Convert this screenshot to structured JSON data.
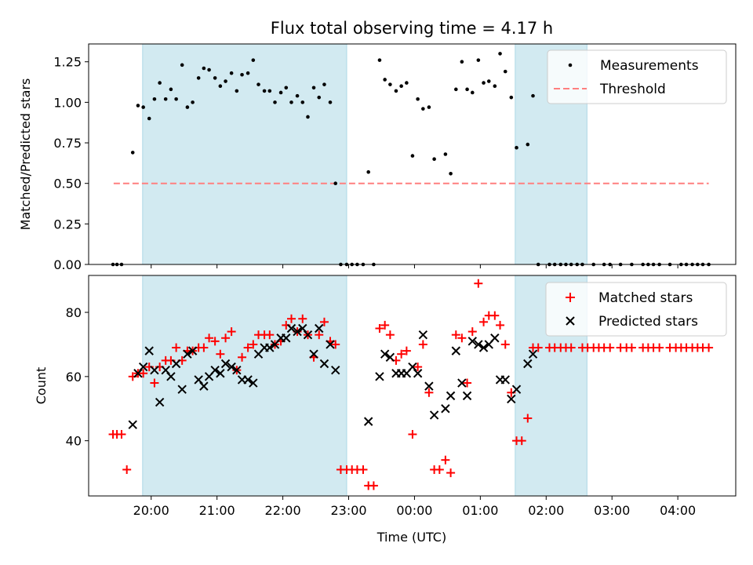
{
  "chart_data": {
    "type": "scatter",
    "title": "Flux total observing time = 4.17 h",
    "xlabel": "Time (UTC)",
    "x_unit": "hours UTC (values past 24 are after midnight)",
    "xlim": [
      19.05,
      28.88
    ],
    "xticks": [
      {
        "v": 20,
        "label": "20:00"
      },
      {
        "v": 21,
        "label": "21:00"
      },
      {
        "v": 22,
        "label": "22:00"
      },
      {
        "v": 23,
        "label": "23:00"
      },
      {
        "v": 24,
        "label": "00:00"
      },
      {
        "v": 25,
        "label": "01:00"
      },
      {
        "v": 26,
        "label": "02:00"
      },
      {
        "v": 27,
        "label": "03:00"
      },
      {
        "v": 28,
        "label": "04:00"
      }
    ],
    "shaded_intervals": [
      [
        19.87,
        22.97
      ],
      [
        25.53,
        26.62
      ]
    ],
    "top": {
      "ylabel": "Matched/Predicted stars",
      "ylim": [
        0,
        1.36
      ],
      "yticks": [
        "0.00",
        "0.25",
        "0.50",
        "0.75",
        "1.00",
        "1.25"
      ],
      "legend": {
        "position": "top-right",
        "entries": [
          "Measurements",
          "Threshold"
        ]
      },
      "threshold": {
        "name": "Threshold",
        "value": 0.5,
        "x_range": [
          19.43,
          28.47
        ],
        "color": "#ff7f7f"
      },
      "measurements": [
        [
          19.42,
          0
        ],
        [
          19.48,
          0
        ],
        [
          19.55,
          0
        ],
        [
          19.72,
          0.69
        ],
        [
          19.8,
          0.98
        ],
        [
          19.88,
          0.97
        ],
        [
          19.97,
          0.9
        ],
        [
          20.05,
          1.02
        ],
        [
          20.13,
          1.12
        ],
        [
          20.22,
          1.02
        ],
        [
          20.3,
          1.08
        ],
        [
          20.38,
          1.02
        ],
        [
          20.47,
          1.23
        ],
        [
          20.55,
          0.97
        ],
        [
          20.63,
          1.0
        ],
        [
          20.72,
          1.15
        ],
        [
          20.8,
          1.21
        ],
        [
          20.88,
          1.2
        ],
        [
          20.97,
          1.15
        ],
        [
          21.05,
          1.1
        ],
        [
          21.13,
          1.13
        ],
        [
          21.22,
          1.18
        ],
        [
          21.3,
          1.07
        ],
        [
          21.38,
          1.17
        ],
        [
          21.47,
          1.18
        ],
        [
          21.55,
          1.26
        ],
        [
          21.63,
          1.11
        ],
        [
          21.72,
          1.07
        ],
        [
          21.8,
          1.07
        ],
        [
          21.88,
          1.0
        ],
        [
          21.97,
          1.06
        ],
        [
          22.05,
          1.09
        ],
        [
          22.13,
          1.0
        ],
        [
          22.22,
          1.04
        ],
        [
          22.3,
          1.0
        ],
        [
          22.38,
          0.91
        ],
        [
          22.47,
          1.09
        ],
        [
          22.55,
          1.03
        ],
        [
          22.63,
          1.11
        ],
        [
          22.72,
          1.0
        ],
        [
          22.8,
          0.5
        ],
        [
          22.88,
          0
        ],
        [
          22.97,
          0
        ],
        [
          23.05,
          0
        ],
        [
          23.13,
          0
        ],
        [
          23.22,
          0
        ],
        [
          23.3,
          0.57
        ],
        [
          23.38,
          0
        ],
        [
          23.47,
          1.26
        ],
        [
          23.55,
          1.14
        ],
        [
          23.63,
          1.11
        ],
        [
          23.72,
          1.07
        ],
        [
          23.8,
          1.1
        ],
        [
          23.88,
          1.12
        ],
        [
          23.97,
          0.67
        ],
        [
          24.05,
          1.02
        ],
        [
          24.13,
          0.96
        ],
        [
          24.22,
          0.97
        ],
        [
          24.3,
          0.65
        ],
        [
          24.47,
          0.68
        ],
        [
          24.55,
          0.56
        ],
        [
          24.63,
          1.08
        ],
        [
          24.72,
          1.25
        ],
        [
          24.8,
          1.08
        ],
        [
          24.88,
          1.06
        ],
        [
          24.97,
          1.26
        ],
        [
          25.05,
          1.12
        ],
        [
          25.13,
          1.13
        ],
        [
          25.22,
          1.1
        ],
        [
          25.3,
          1.3
        ],
        [
          25.38,
          1.19
        ],
        [
          25.47,
          1.03
        ],
        [
          25.55,
          0.72
        ],
        [
          25.72,
          0.74
        ],
        [
          25.8,
          1.04
        ],
        [
          25.88,
          0
        ],
        [
          26.05,
          0
        ],
        [
          26.13,
          0
        ],
        [
          26.22,
          0
        ],
        [
          26.3,
          0
        ],
        [
          26.38,
          0
        ],
        [
          26.47,
          0
        ],
        [
          26.55,
          0
        ],
        [
          26.72,
          0
        ],
        [
          26.88,
          0
        ],
        [
          26.97,
          0
        ],
        [
          27.13,
          0
        ],
        [
          27.3,
          0
        ],
        [
          27.47,
          0
        ],
        [
          27.55,
          0
        ],
        [
          27.63,
          0
        ],
        [
          27.72,
          0
        ],
        [
          27.88,
          0
        ],
        [
          28.05,
          0
        ],
        [
          28.13,
          0
        ],
        [
          28.22,
          0
        ],
        [
          28.3,
          0
        ],
        [
          28.38,
          0
        ],
        [
          28.47,
          0
        ]
      ]
    },
    "bottom": {
      "ylabel": "Count",
      "ylim": [
        22.8,
        91.5
      ],
      "yticks": [
        "40",
        "60",
        "80"
      ],
      "legend": {
        "position": "top-right",
        "entries": [
          "Matched stars",
          "Predicted stars"
        ]
      },
      "matched": [
        [
          19.42,
          42
        ],
        [
          19.48,
          42
        ],
        [
          19.55,
          42
        ],
        [
          19.63,
          31
        ],
        [
          19.72,
          60
        ],
        [
          19.8,
          61
        ],
        [
          19.88,
          61
        ],
        [
          19.97,
          63
        ],
        [
          20.05,
          58
        ],
        [
          20.13,
          63
        ],
        [
          20.22,
          65
        ],
        [
          20.3,
          65
        ],
        [
          20.38,
          69
        ],
        [
          20.47,
          65
        ],
        [
          20.55,
          68
        ],
        [
          20.63,
          68
        ],
        [
          20.72,
          69
        ],
        [
          20.8,
          69
        ],
        [
          20.88,
          72
        ],
        [
          20.97,
          71
        ],
        [
          21.05,
          67
        ],
        [
          21.13,
          72
        ],
        [
          21.22,
          74
        ],
        [
          21.3,
          62
        ],
        [
          21.38,
          66
        ],
        [
          21.47,
          69
        ],
        [
          21.55,
          70
        ],
        [
          21.63,
          73
        ],
        [
          21.72,
          73
        ],
        [
          21.8,
          73
        ],
        [
          21.88,
          70
        ],
        [
          21.97,
          71
        ],
        [
          22.05,
          76
        ],
        [
          22.13,
          78
        ],
        [
          22.22,
          74
        ],
        [
          22.3,
          78
        ],
        [
          22.38,
          73
        ],
        [
          22.47,
          66
        ],
        [
          22.55,
          73
        ],
        [
          22.63,
          77
        ],
        [
          22.72,
          71
        ],
        [
          22.8,
          70
        ],
        [
          22.88,
          31
        ],
        [
          22.97,
          31
        ],
        [
          23.05,
          31
        ],
        [
          23.13,
          31
        ],
        [
          23.22,
          31
        ],
        [
          23.3,
          26
        ],
        [
          23.38,
          26
        ],
        [
          23.47,
          75
        ],
        [
          23.55,
          76
        ],
        [
          23.63,
          73
        ],
        [
          23.72,
          65
        ],
        [
          23.8,
          67
        ],
        [
          23.88,
          68
        ],
        [
          23.97,
          42
        ],
        [
          24.05,
          63
        ],
        [
          24.13,
          70
        ],
        [
          24.22,
          55
        ],
        [
          24.3,
          31
        ],
        [
          24.38,
          31
        ],
        [
          24.47,
          34
        ],
        [
          24.55,
          30
        ],
        [
          24.63,
          73
        ],
        [
          24.72,
          72
        ],
        [
          24.8,
          58
        ],
        [
          24.88,
          74
        ],
        [
          24.97,
          89
        ],
        [
          25.05,
          77
        ],
        [
          25.13,
          79
        ],
        [
          25.22,
          79
        ],
        [
          25.3,
          76
        ],
        [
          25.38,
          70
        ],
        [
          25.47,
          55
        ],
        [
          25.55,
          40
        ],
        [
          25.63,
          40
        ],
        [
          25.72,
          47
        ],
        [
          25.8,
          69
        ],
        [
          25.88,
          69
        ],
        [
          26.05,
          69
        ],
        [
          26.13,
          69
        ],
        [
          26.22,
          69
        ],
        [
          26.3,
          69
        ],
        [
          26.38,
          69
        ],
        [
          26.55,
          69
        ],
        [
          26.63,
          69
        ],
        [
          26.72,
          69
        ],
        [
          26.8,
          69
        ],
        [
          26.88,
          69
        ],
        [
          26.97,
          69
        ],
        [
          27.13,
          69
        ],
        [
          27.22,
          69
        ],
        [
          27.3,
          69
        ],
        [
          27.47,
          69
        ],
        [
          27.55,
          69
        ],
        [
          27.63,
          69
        ],
        [
          27.72,
          69
        ],
        [
          27.88,
          69
        ],
        [
          27.97,
          69
        ],
        [
          28.05,
          69
        ],
        [
          28.13,
          69
        ],
        [
          28.22,
          69
        ],
        [
          28.3,
          69
        ],
        [
          28.38,
          69
        ],
        [
          28.47,
          69
        ]
      ],
      "predicted": [
        [
          19.72,
          45
        ],
        [
          19.8,
          61
        ],
        [
          19.88,
          63
        ],
        [
          19.97,
          68
        ],
        [
          20.05,
          62
        ],
        [
          20.13,
          52
        ],
        [
          20.22,
          62
        ],
        [
          20.3,
          60
        ],
        [
          20.38,
          64
        ],
        [
          20.47,
          56
        ],
        [
          20.55,
          67
        ],
        [
          20.63,
          68
        ],
        [
          20.72,
          59
        ],
        [
          20.8,
          57
        ],
        [
          20.88,
          60
        ],
        [
          20.97,
          62
        ],
        [
          21.05,
          61
        ],
        [
          21.13,
          64
        ],
        [
          21.22,
          63
        ],
        [
          21.3,
          62
        ],
        [
          21.38,
          59
        ],
        [
          21.47,
          59
        ],
        [
          21.55,
          58
        ],
        [
          21.63,
          67
        ],
        [
          21.72,
          69
        ],
        [
          21.8,
          69
        ],
        [
          21.88,
          70
        ],
        [
          21.97,
          72
        ],
        [
          22.05,
          72
        ],
        [
          22.13,
          75
        ],
        [
          22.22,
          74
        ],
        [
          22.3,
          75
        ],
        [
          22.38,
          73
        ],
        [
          22.47,
          67
        ],
        [
          22.55,
          75
        ],
        [
          22.63,
          64
        ],
        [
          22.72,
          70
        ],
        [
          22.8,
          62
        ],
        [
          23.3,
          46
        ],
        [
          23.47,
          60
        ],
        [
          23.55,
          67
        ],
        [
          23.63,
          66
        ],
        [
          23.72,
          61
        ],
        [
          23.8,
          61
        ],
        [
          23.88,
          61
        ],
        [
          23.97,
          63
        ],
        [
          24.05,
          61
        ],
        [
          24.13,
          73
        ],
        [
          24.22,
          57
        ],
        [
          24.3,
          48
        ],
        [
          24.47,
          50
        ],
        [
          24.55,
          54
        ],
        [
          24.63,
          68
        ],
        [
          24.72,
          58
        ],
        [
          24.8,
          54
        ],
        [
          24.88,
          71
        ],
        [
          24.97,
          70
        ],
        [
          25.05,
          69
        ],
        [
          25.13,
          70
        ],
        [
          25.22,
          72
        ],
        [
          25.3,
          59
        ],
        [
          25.38,
          59
        ],
        [
          25.47,
          53
        ],
        [
          25.55,
          56
        ],
        [
          25.72,
          64
        ],
        [
          25.8,
          67
        ]
      ]
    }
  },
  "colors": {
    "shade": "#add8e6",
    "measurement": "#000000",
    "threshold": "#ff7f7f",
    "matched": "#ff0000",
    "predicted": "#000000"
  }
}
